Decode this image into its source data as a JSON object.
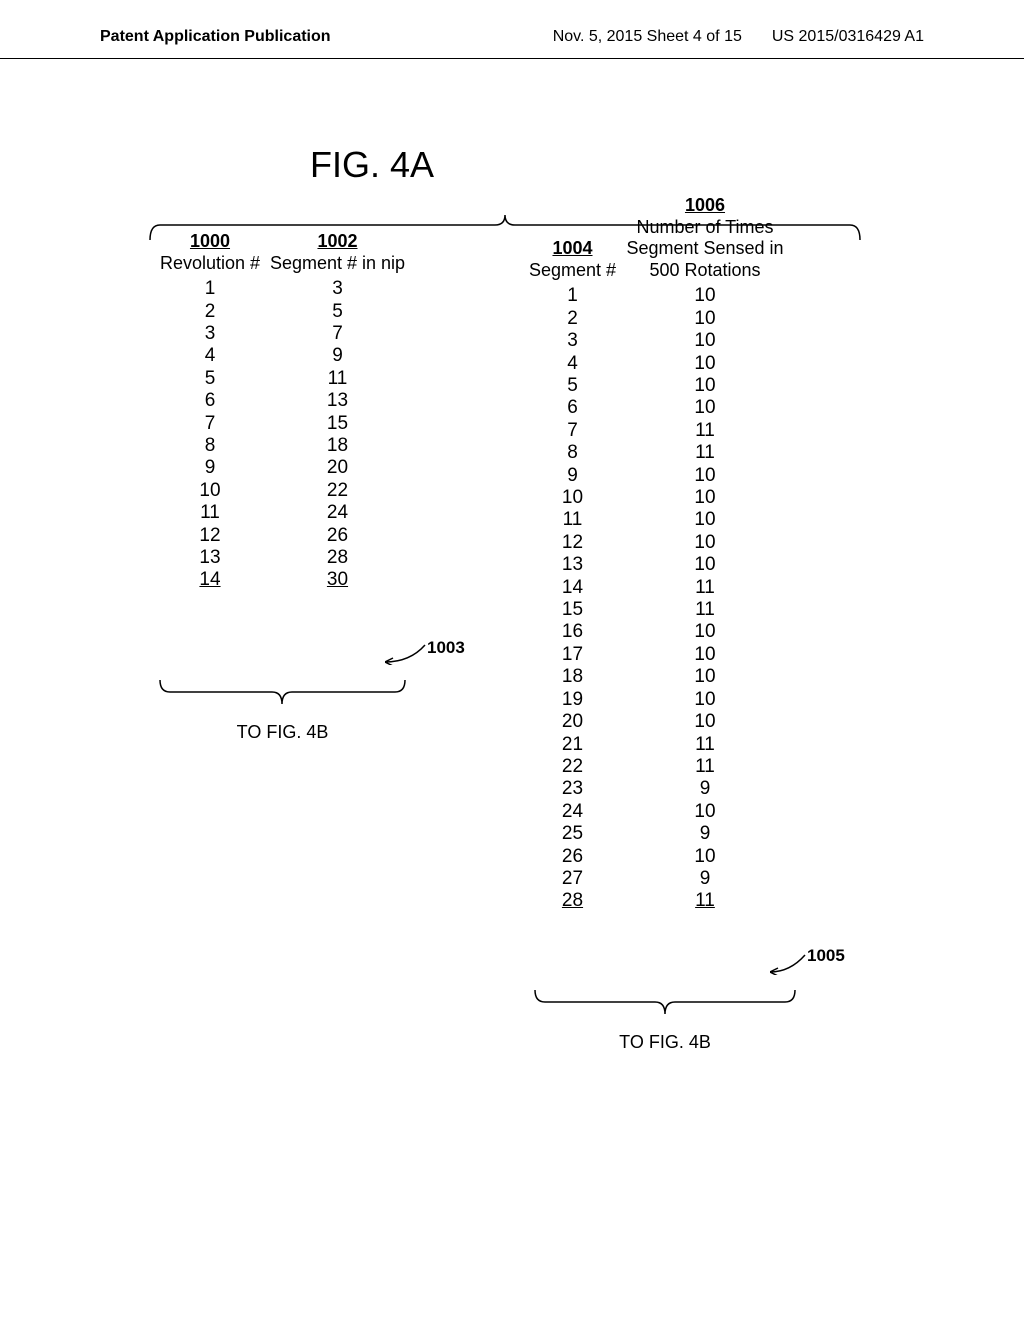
{
  "header": {
    "left": "Patent Application Publication",
    "center": "Nov. 5, 2015  Sheet 4 of 15",
    "right": "US 2015/0316429 A1"
  },
  "figure_title": "FIG. 4A",
  "columns": {
    "c1000": {
      "num": "1000",
      "label": "Revolution #"
    },
    "c1002": {
      "num": "1002",
      "label": "Segment # in nip"
    },
    "c1004": {
      "num": "1004",
      "label": "Segment #"
    },
    "c1006": {
      "num": "1006",
      "label1": "Number of Times",
      "label2": "Segment Sensed in",
      "label3": "500 Rotations"
    }
  },
  "left_rows": [
    {
      "rev": "1",
      "seg": "3"
    },
    {
      "rev": "2",
      "seg": "5"
    },
    {
      "rev": "3",
      "seg": "7"
    },
    {
      "rev": "4",
      "seg": "9"
    },
    {
      "rev": "5",
      "seg": "11"
    },
    {
      "rev": "6",
      "seg": "13"
    },
    {
      "rev": "7",
      "seg": "15"
    },
    {
      "rev": "8",
      "seg": "18"
    },
    {
      "rev": "9",
      "seg": "20"
    },
    {
      "rev": "10",
      "seg": "22"
    },
    {
      "rev": "11",
      "seg": "24"
    },
    {
      "rev": "12",
      "seg": "26"
    },
    {
      "rev": "13",
      "seg": "28"
    },
    {
      "rev": "14",
      "seg": "30"
    }
  ],
  "right_rows": [
    {
      "seg": "1",
      "cnt": "10"
    },
    {
      "seg": "2",
      "cnt": "10"
    },
    {
      "seg": "3",
      "cnt": "10"
    },
    {
      "seg": "4",
      "cnt": "10"
    },
    {
      "seg": "5",
      "cnt": "10"
    },
    {
      "seg": "6",
      "cnt": "10"
    },
    {
      "seg": "7",
      "cnt": "11"
    },
    {
      "seg": "8",
      "cnt": "11"
    },
    {
      "seg": "9",
      "cnt": "10"
    },
    {
      "seg": "10",
      "cnt": "10"
    },
    {
      "seg": "11",
      "cnt": "10"
    },
    {
      "seg": "12",
      "cnt": "10"
    },
    {
      "seg": "13",
      "cnt": "10"
    },
    {
      "seg": "14",
      "cnt": "11"
    },
    {
      "seg": "15",
      "cnt": "11"
    },
    {
      "seg": "16",
      "cnt": "10"
    },
    {
      "seg": "17",
      "cnt": "10"
    },
    {
      "seg": "18",
      "cnt": "10"
    },
    {
      "seg": "19",
      "cnt": "10"
    },
    {
      "seg": "20",
      "cnt": "10"
    },
    {
      "seg": "21",
      "cnt": "11"
    },
    {
      "seg": "22",
      "cnt": "11"
    },
    {
      "seg": "23",
      "cnt": "9"
    },
    {
      "seg": "24",
      "cnt": "10"
    },
    {
      "seg": "25",
      "cnt": "9"
    },
    {
      "seg": "26",
      "cnt": "10"
    },
    {
      "seg": "27",
      "cnt": "9"
    },
    {
      "seg": "28",
      "cnt": "11"
    }
  ],
  "callouts": {
    "c1003": "1003",
    "c1005": "1005"
  },
  "to_fig": "TO FIG. 4B"
}
